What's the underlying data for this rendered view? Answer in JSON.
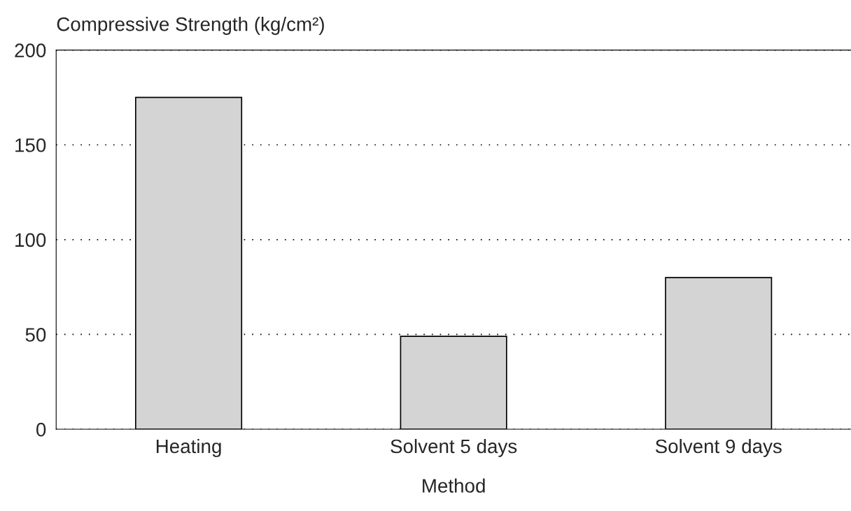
{
  "chart_data": {
    "type": "bar",
    "ylabel": "Compressive Strength (kg/cm²)",
    "xlabel": "Method",
    "categories": [
      "Heating",
      "Solvent 5 days",
      "Solvent 9 days"
    ],
    "values": [
      175,
      49,
      80
    ],
    "color": "#d4d4d4",
    "ylim": [
      0,
      200
    ],
    "yticks": [
      0,
      50,
      100,
      150,
      200
    ],
    "grid": "y"
  }
}
